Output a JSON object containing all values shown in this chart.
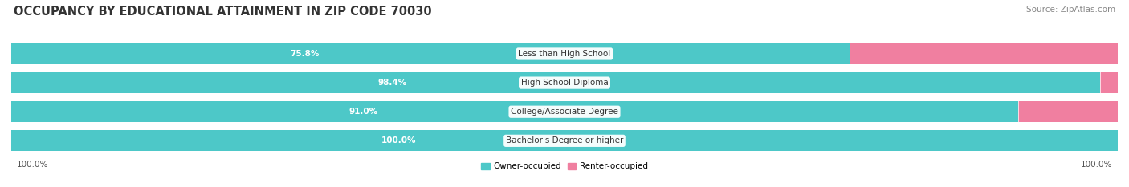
{
  "title": "OCCUPANCY BY EDUCATIONAL ATTAINMENT IN ZIP CODE 70030",
  "source": "Source: ZipAtlas.com",
  "categories": [
    "Less than High School",
    "High School Diploma",
    "College/Associate Degree",
    "Bachelor's Degree or higher"
  ],
  "owner_values": [
    75.8,
    98.4,
    91.0,
    100.0
  ],
  "renter_values": [
    24.2,
    1.6,
    9.0,
    0.0
  ],
  "owner_color": "#4DC8C8",
  "renter_color": "#F07FA0",
  "bar_bg_color": "#EBEBEB",
  "bg_color": "#FFFFFF",
  "row_bg_color": "#F5F5F5",
  "title_fontsize": 10.5,
  "source_fontsize": 7.5,
  "label_fontsize": 7.5,
  "cat_fontsize": 7.5,
  "legend_owner": "Owner-occupied",
  "legend_renter": "Renter-occupied",
  "axis_label_left": "100.0%",
  "axis_label_right": "100.0%"
}
